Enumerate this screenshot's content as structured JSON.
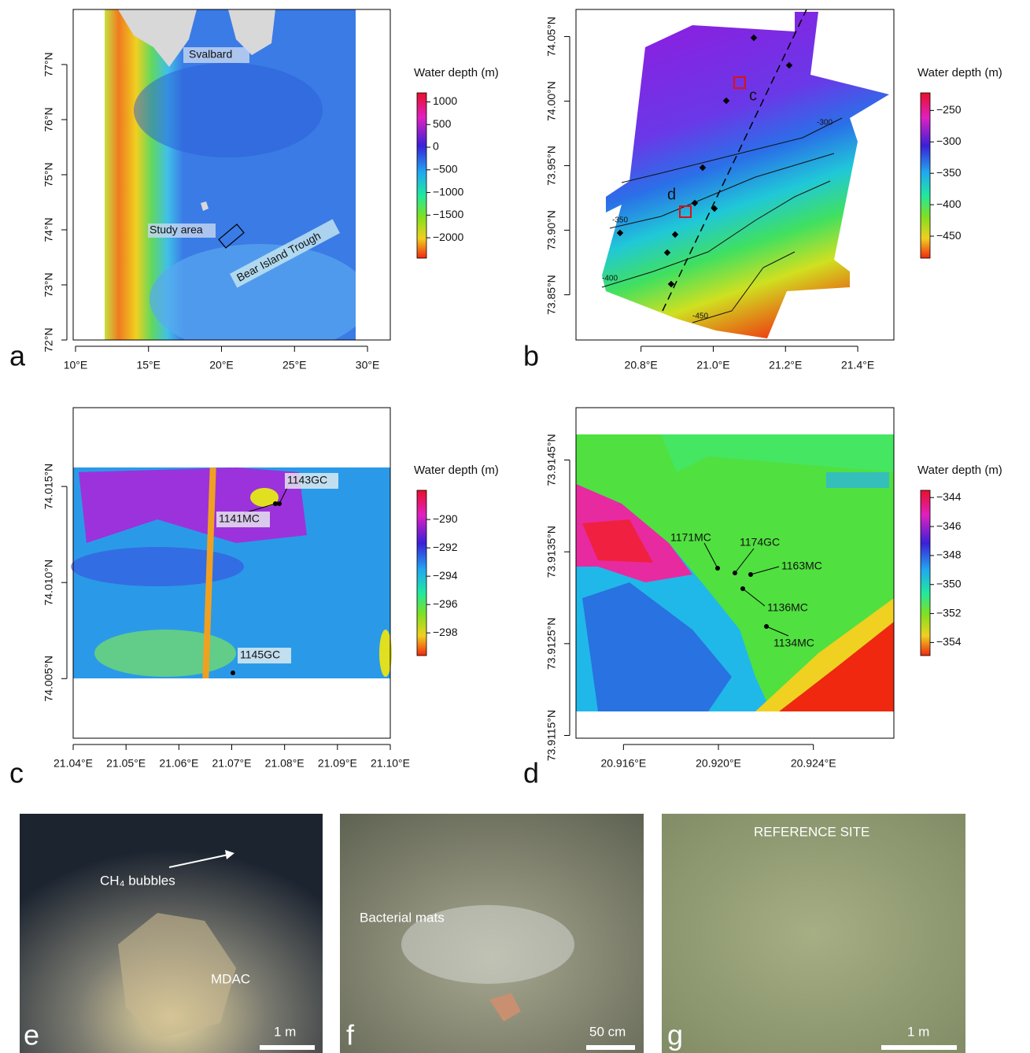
{
  "panels": {
    "a": {
      "letter": "a",
      "xlim": [
        9.84,
        31.56
      ],
      "ylim": [
        72,
        78
      ],
      "xticks": [
        {
          "value": 10,
          "label": "10°E"
        },
        {
          "value": 15,
          "label": "15°E"
        },
        {
          "value": 20,
          "label": "20°E"
        },
        {
          "value": 25,
          "label": "25°E"
        },
        {
          "value": 30,
          "label": "30°E"
        }
      ],
      "yticks": [
        {
          "value": 72,
          "label": "72°N"
        },
        {
          "value": 73,
          "label": "73°N"
        },
        {
          "value": 74,
          "label": "74°N"
        },
        {
          "value": 75,
          "label": "75°N"
        },
        {
          "value": 76,
          "label": "76°N"
        },
        {
          "value": 77,
          "label": "77°N"
        }
      ],
      "colorbar": {
        "title": "Water depth (m)",
        "lim": [
          -2450,
          1200
        ],
        "ticks": [
          1000,
          500,
          0,
          {
            "value": -500,
            "label": "−500"
          },
          {
            "value": -1000,
            "label": "−1000"
          },
          {
            "value": -1500,
            "label": "−1500"
          },
          {
            "value": -2000,
            "label": "−2000"
          }
        ]
      },
      "labels": [
        "Svalbard",
        "Study area",
        "Bear Island Trough"
      ]
    },
    "b": {
      "letter": "b",
      "xlim": [
        20.62,
        21.5
      ],
      "ylim": [
        73.815,
        74.071
      ],
      "xticks": [
        {
          "value": 20.8,
          "label": "20.8°E"
        },
        {
          "value": 21.0,
          "label": "21.0°E"
        },
        {
          "value": 21.2,
          "label": "21.2°E"
        },
        {
          "value": 21.4,
          "label": "21.4°E"
        }
      ],
      "yticks": [
        {
          "value": 73.85,
          "label": "73.85°N"
        },
        {
          "value": 73.9,
          "label": "73.90°N"
        },
        {
          "value": 73.95,
          "label": "73.95°N"
        },
        {
          "value": 74.0,
          "label": "74.00°N"
        },
        {
          "value": 74.05,
          "label": "74.05°N"
        }
      ],
      "colorbar": {
        "title": "Water depth (m)",
        "lim": [
          -485,
          -222
        ],
        "ticks": [
          {
            "value": -250,
            "label": "−250"
          },
          {
            "value": -300,
            "label": "−300"
          },
          {
            "value": -350,
            "label": "−350"
          },
          {
            "value": -400,
            "label": "−400"
          },
          {
            "value": -450,
            "label": "−450"
          }
        ]
      },
      "labels": [
        "c",
        "d",
        "-300",
        "-350",
        "-400",
        "-450"
      ]
    },
    "c": {
      "letter": "c",
      "xlim": [
        21.04,
        21.1
      ],
      "ylim": [
        74.0019,
        74.0191
      ],
      "xticks": [
        {
          "value": 21.04,
          "label": "21.04°E"
        },
        {
          "value": 21.05,
          "label": "21.05°E"
        },
        {
          "value": 21.06,
          "label": "21.06°E"
        },
        {
          "value": 21.07,
          "label": "21.07°E"
        },
        {
          "value": 21.08,
          "label": "21.08°E"
        },
        {
          "value": 21.09,
          "label": "21.09°E"
        },
        {
          "value": 21.1,
          "label": "21.10°E"
        }
      ],
      "yticks": [
        {
          "value": 74.005,
          "label": "74.005°N"
        },
        {
          "value": 74.01,
          "label": "74.010°N"
        },
        {
          "value": 74.015,
          "label": "74.015°N"
        }
      ],
      "colorbar": {
        "title": "Water depth (m)",
        "lim": [
          -299.6,
          -287.94
        ],
        "ticks": [
          {
            "value": -290,
            "label": "−290"
          },
          {
            "value": -292,
            "label": "−292"
          },
          {
            "value": -294,
            "label": "−294"
          },
          {
            "value": -296,
            "label": "−296"
          },
          {
            "value": -298,
            "label": "−298"
          }
        ]
      },
      "labels": [
        "1143GC",
        "1141MC",
        "1145GC"
      ]
    },
    "d": {
      "letter": "d",
      "xlim": [
        20.914,
        20.92739
      ],
      "ylim": [
        73.91147,
        73.91507
      ],
      "xticks": [
        {
          "value": 20.916,
          "label": "20.916°E"
        },
        {
          "value": 20.92,
          "label": "20.920°E"
        },
        {
          "value": 20.924,
          "label": "20.924°E"
        }
      ],
      "yticks": [
        {
          "value": 73.9115,
          "label": "73.9115°N"
        },
        {
          "value": 73.9125,
          "label": "73.9125°N"
        },
        {
          "value": 73.9135,
          "label": "73.9135°N"
        },
        {
          "value": 73.9145,
          "label": "73.9145°N"
        }
      ],
      "colorbar": {
        "title": "Water depth (m)",
        "lim": [
          -354.9,
          -343.5
        ],
        "ticks": [
          {
            "value": -344,
            "label": "−344"
          },
          {
            "value": -346,
            "label": "−346"
          },
          {
            "value": -348,
            "label": "−348"
          },
          {
            "value": -350,
            "label": "−350"
          },
          {
            "value": -352,
            "label": "−352"
          },
          {
            "value": -354,
            "label": "−354"
          }
        ]
      },
      "labels": [
        "1171MC",
        "1174GC",
        "1163MC",
        "1136MC",
        "1134MC"
      ]
    }
  },
  "photos": {
    "e": {
      "letter": "e",
      "labels": [
        "CH₄ bubbles",
        "MDAC"
      ],
      "scale_bar": "1 m"
    },
    "f": {
      "letter": "f",
      "labels": [
        "Bacterial mats"
      ],
      "scale_bar": "50 cm"
    },
    "g": {
      "letter": "g",
      "labels": [
        "REFERENCE SITE"
      ],
      "scale_bar": "1 m"
    }
  }
}
